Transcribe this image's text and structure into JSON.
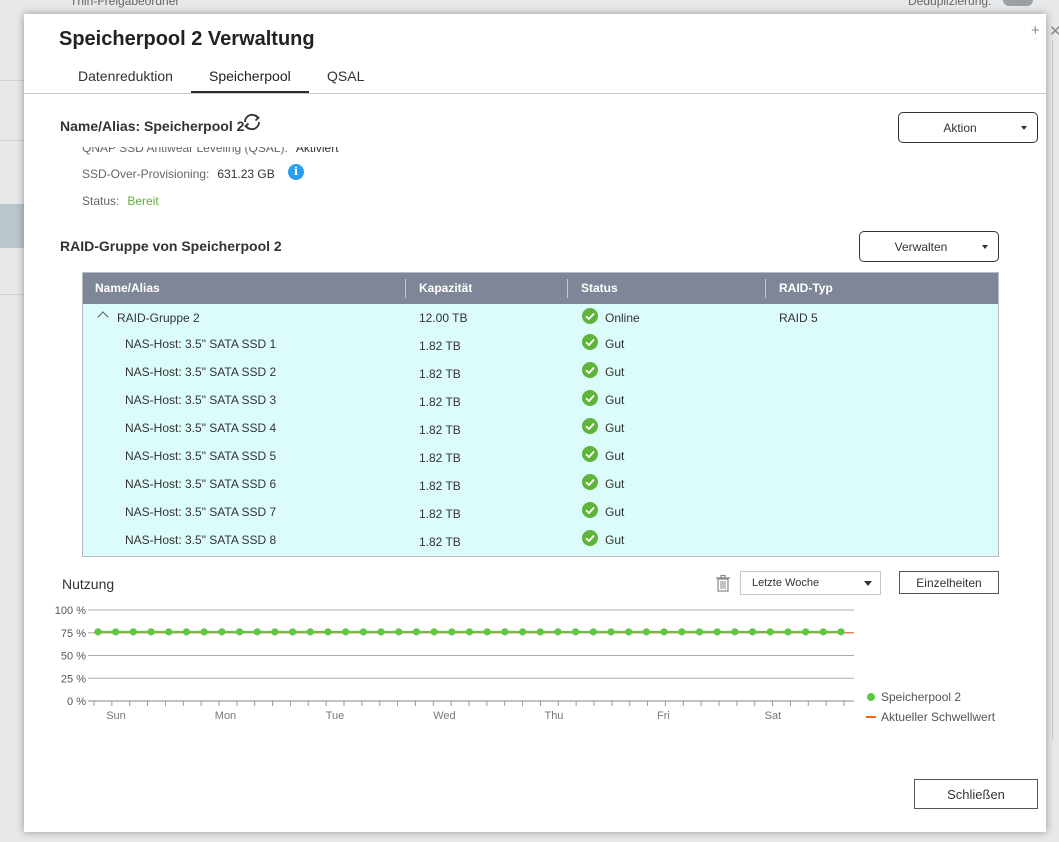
{
  "background": {
    "left_label": "Thin-Freigabeordner",
    "right_label": "Deduplizierung:"
  },
  "dialog": {
    "title": "Speicherpool 2 Verwaltung",
    "controls": [
      "+",
      "✕"
    ]
  },
  "tabs": [
    {
      "label": "Datenreduktion",
      "active": false
    },
    {
      "label": "Speicherpool",
      "active": true
    },
    {
      "label": "QSAL",
      "active": false
    }
  ],
  "pool": {
    "name_alias": "Name/Alias: Speicherpool 2",
    "action_button": "Aktion",
    "properties": [
      {
        "label": "QNAP SSD Antiwear Leveling (QSAL):",
        "value": "Aktiviert"
      },
      {
        "label": "SSD-Over-Provisioning:",
        "value": "631.23 GB"
      },
      {
        "label": "Status:",
        "value": "Bereit"
      }
    ],
    "status_color": "#5fae3a"
  },
  "raid": {
    "title": "RAID-Gruppe von Speicherpool 2",
    "manage_button": "Verwalten",
    "columns": [
      "Name/Alias",
      "Kapazität",
      "Status",
      "RAID-Typ"
    ],
    "group": {
      "name": "RAID-Gruppe 2",
      "capacity": "12.00 TB",
      "status": "Online",
      "raid_type": "RAID 5"
    },
    "disks": [
      {
        "name": "NAS-Host: 3.5\" SATA SSD 1",
        "capacity": "1.82 TB",
        "status": "Gut"
      },
      {
        "name": "NAS-Host: 3.5\" SATA SSD 2",
        "capacity": "1.82 TB",
        "status": "Gut"
      },
      {
        "name": "NAS-Host: 3.5\" SATA SSD 3",
        "capacity": "1.82 TB",
        "status": "Gut"
      },
      {
        "name": "NAS-Host: 3.5\" SATA SSD 4",
        "capacity": "1.82 TB",
        "status": "Gut"
      },
      {
        "name": "NAS-Host: 3.5\" SATA SSD 5",
        "capacity": "1.82 TB",
        "status": "Gut"
      },
      {
        "name": "NAS-Host: 3.5\" SATA SSD 6",
        "capacity": "1.82 TB",
        "status": "Gut"
      },
      {
        "name": "NAS-Host: 3.5\" SATA SSD 7",
        "capacity": "1.82 TB",
        "status": "Gut"
      },
      {
        "name": "NAS-Host: 3.5\" SATA SSD 8",
        "capacity": "1.82 TB",
        "status": "Gut"
      }
    ],
    "header_color": "#7f8698",
    "row_color": "#dcfbfb",
    "check_color": "#5fb53c"
  },
  "usage": {
    "title": "Nutzung",
    "range_select": "Letzte Woche",
    "details_button": "Einzelheiten"
  },
  "chart_data": {
    "type": "line",
    "yticks": [
      "100 %",
      "75 %",
      "50 %",
      "25 %",
      "0 %"
    ],
    "ylim": [
      0,
      100
    ],
    "xticks": [
      "Sun",
      "Mon",
      "Tue",
      "Wed",
      "Thu",
      "Fri",
      "Sat"
    ],
    "series": [
      {
        "name": "Speicherpool 2",
        "color": "#5cc846",
        "values": [
          76,
          76,
          76,
          76,
          76,
          76,
          76,
          76,
          76,
          76,
          76,
          76,
          76,
          76,
          76,
          76,
          76,
          76,
          76,
          76,
          76,
          76,
          76,
          76,
          76,
          76,
          76,
          76,
          76,
          76,
          76,
          76,
          76,
          76,
          76,
          76,
          76,
          76,
          76,
          76,
          76,
          76,
          76
        ]
      },
      {
        "name": "Aktueller Schwellwert",
        "color": "#f06418",
        "values": [
          75,
          75
        ]
      }
    ]
  },
  "close_button": "Schließen"
}
